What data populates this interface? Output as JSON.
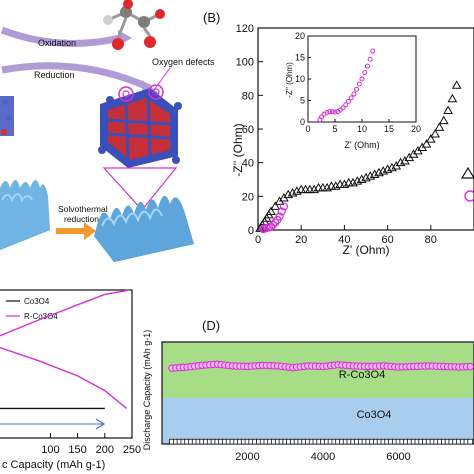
{
  "panel_a": {
    "oxidation_label": "Oxidation",
    "reduction_label": "Reduction",
    "oxygen_defects_label": "Oxygen defects",
    "solvothermal_label_1": "Solvothermal",
    "solvothermal_label_2": "reduction"
  },
  "panel_b": {
    "label": "(B)",
    "ylabel": "-Z'' (Ohm)",
    "xlabel": "Z' (Ohm)",
    "inset_ylabel": "-Z'' (Ohm)",
    "inset_xlabel": "Z' (Ohm)"
  },
  "panel_c": {
    "legend_1": "Co3O4",
    "legend_2": "R-Co3O4",
    "xlabel": "c Capacity (mAh g-1)"
  },
  "panel_d": {
    "label": "(D)",
    "ylabel": "Discharge Capacity (mAh g-1)",
    "band_top_label": "R-Co3O4",
    "band_bottom_label": "Co3O4",
    "band_top_color": "#a6dd86",
    "band_bottom_color": "#a9cdec"
  },
  "colors": {
    "series_co3o4": "#111111",
    "series_rco3o4": "#d62fd6"
  },
  "chart_data": [
    {
      "type": "scatter",
      "panel": "B",
      "xlabel": "Z' (Ohm)",
      "ylabel": "-Z'' (Ohm)",
      "xlim": [
        0,
        100
      ],
      "ylim": [
        0,
        120
      ],
      "xticks": [
        0,
        20,
        40,
        60,
        80
      ],
      "yticks": [
        0,
        20,
        40,
        60,
        80,
        100,
        120
      ],
      "series": [
        {
          "marker": "triangle",
          "x": [
            1,
            2,
            3,
            4,
            5,
            6,
            8,
            10,
            12,
            14,
            16,
            18,
            20,
            22,
            24,
            26,
            28,
            30,
            32,
            34,
            36,
            38,
            40,
            42,
            44,
            46,
            48,
            50,
            52,
            54,
            56,
            58,
            60,
            62,
            64,
            66,
            68,
            70,
            72,
            74,
            76,
            78,
            80,
            82,
            84,
            86,
            88,
            90,
            92
          ],
          "y": [
            1,
            3,
            5,
            7,
            9,
            11,
            14,
            17,
            19,
            21,
            22,
            23,
            24,
            24,
            24,
            24,
            25,
            25,
            25,
            26,
            26,
            27,
            27,
            28,
            28,
            29,
            30,
            31,
            32,
            33,
            34,
            35,
            36,
            37,
            38,
            40,
            41,
            43,
            45,
            47,
            49,
            51,
            54,
            57,
            61,
            65,
            71,
            78,
            86
          ]
        },
        {
          "marker": "circle",
          "x": [
            2.5,
            3,
            4,
            5,
            6,
            7,
            8,
            9,
            10,
            11,
            12
          ],
          "y": [
            0.5,
            0.8,
            1.2,
            1.5,
            2,
            3,
            4.5,
            6,
            8,
            11,
            14
          ]
        }
      ]
    },
    {
      "type": "scatter",
      "panel": "B-inset",
      "xlabel": "Z' (Ohm)",
      "ylabel": "-Z'' (Ohm)",
      "xlim": [
        0,
        20
      ],
      "ylim": [
        0,
        20
      ],
      "xticks": [
        0,
        5,
        10,
        15,
        20
      ],
      "yticks": [
        0,
        5,
        10,
        15,
        20
      ],
      "series": [
        {
          "marker": "circle",
          "x": [
            2.2,
            2.5,
            3,
            3.5,
            4,
            4.5,
            5,
            5.5,
            6,
            6.5,
            7,
            7.5,
            8,
            8.5,
            9,
            9.5,
            10,
            10.5,
            11,
            11.5,
            12
          ],
          "y": [
            0.5,
            1.2,
            1.8,
            2.2,
            2.4,
            2.4,
            2.3,
            2.4,
            2.8,
            3.3,
            4,
            4.8,
            5.6,
            6.5,
            7.6,
            8.8,
            10,
            11.5,
            13,
            14.6,
            16.5
          ]
        }
      ]
    },
    {
      "type": "line",
      "panel": "C",
      "xlim": [
        0,
        250
      ],
      "xticks": [
        100,
        150,
        200,
        250
      ],
      "ylim": [
        0,
        1
      ],
      "series": [
        {
          "name": "Co3O4",
          "x": [
            0,
            100,
            150,
            200
          ],
          "y": [
            0.2,
            0.2,
            0.2,
            0.2
          ]
        },
        {
          "name": "R-Co3O4",
          "x": [
            0,
            80,
            150,
            200,
            245
          ],
          "y": [
            0.68,
            0.8,
            0.9,
            0.97,
            1.0
          ]
        },
        {
          "name": "R-Co3O4",
          "x": [
            0,
            80,
            150,
            200,
            240
          ],
          "y": [
            0.62,
            0.52,
            0.42,
            0.32,
            0.2
          ]
        }
      ]
    },
    {
      "type": "scatter",
      "panel": "D",
      "xlim": [
        0,
        8000
      ],
      "ylim": [
        0,
        175
      ],
      "xticks": [
        2000,
        4000,
        6000
      ],
      "series": [
        {
          "name": "R-Co3O4",
          "x": [
            0,
            400,
            800,
            1200,
            1600,
            2000,
            2400,
            2800,
            3200,
            3600,
            4000,
            4400,
            4800,
            5200,
            5600,
            6000,
            6400,
            6800,
            7200,
            7600,
            8000
          ],
          "y": [
            130,
            132,
            135,
            137,
            134,
            133,
            135,
            134,
            131,
            134,
            133,
            136,
            134,
            133,
            134,
            132,
            133,
            134,
            133,
            132,
            133
          ]
        },
        {
          "name": "Co3O4",
          "x": [
            0,
            400,
            800,
            1200,
            1600,
            2000,
            2400,
            2800,
            3200,
            3600,
            4000,
            4400,
            4800,
            5200,
            5600,
            6000,
            6400,
            6800,
            7200,
            7600,
            8000
          ],
          "y": [
            4,
            4,
            4,
            4,
            4,
            4,
            4,
            4,
            4,
            4,
            4,
            4,
            4,
            4,
            4,
            4,
            4,
            4,
            4,
            4,
            4
          ]
        }
      ]
    }
  ]
}
